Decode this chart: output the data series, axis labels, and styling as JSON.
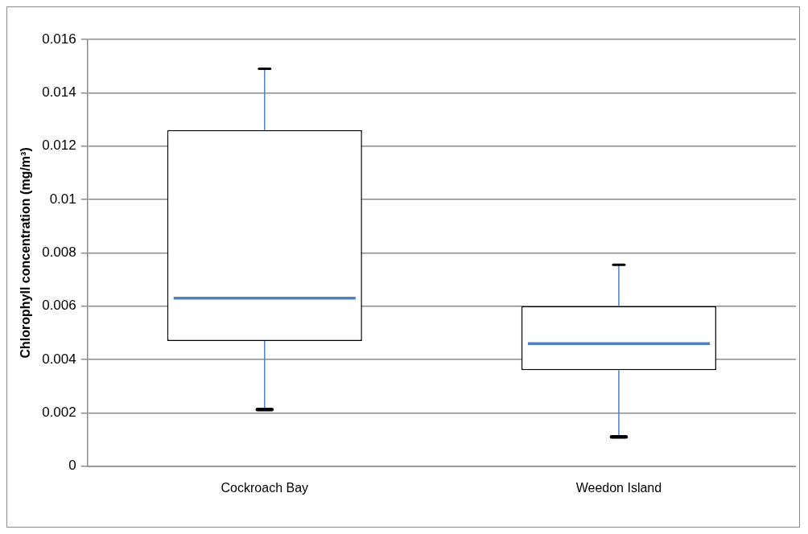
{
  "chart_data": {
    "type": "box",
    "ylabel": "Chlorophyll concentration (mg/m³)",
    "categories": [
      "Cockroach Bay",
      "Weedon Island"
    ],
    "boxes": [
      {
        "low": 0.00213,
        "q1": 0.0047,
        "median": 0.0063,
        "q3": 0.0126,
        "high": 0.0149
      },
      {
        "low": 0.0011,
        "q1": 0.0036,
        "median": 0.0046,
        "q3": 0.006,
        "high": 0.00755
      }
    ],
    "color": "#000000",
    "ylim": [
      0,
      0.016
    ],
    "yticks": [
      0,
      0.002,
      0.004,
      0.006,
      0.008,
      0.01,
      0.012,
      0.014,
      0.016
    ],
    "grid": "y",
    "legend": false
  }
}
